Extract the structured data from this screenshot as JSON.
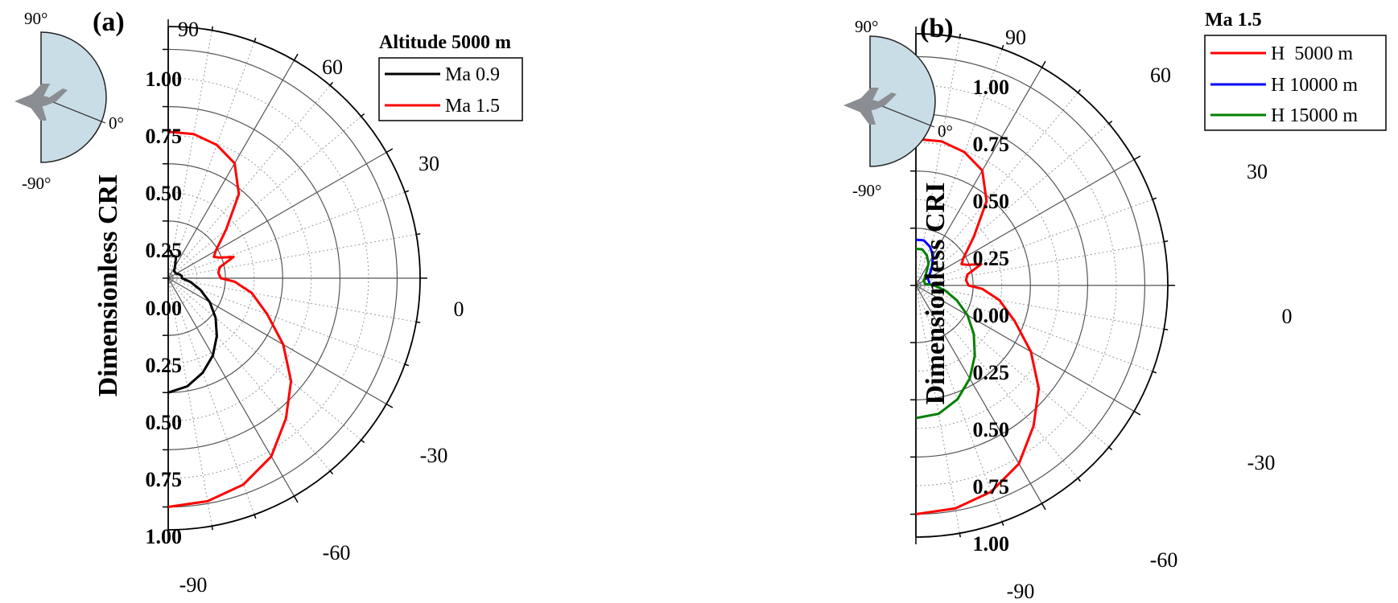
{
  "chart_data": [
    {
      "type": "polar-line",
      "panel_label": "(a)",
      "ylabel": "Dimensionless CRI",
      "r_ticks": [
        "1.00",
        "0.75",
        "0.50",
        "0.25",
        "0.00",
        "0.25",
        "0.50",
        "0.75",
        "1.00"
      ],
      "r_max": 1.1,
      "angle_range": [
        -90,
        90
      ],
      "angle_labels": [
        "90",
        "60",
        "30",
        "0",
        "-30",
        "-60",
        "-90"
      ],
      "legend": {
        "title": "Altitude 5000 m",
        "position": "top-right"
      },
      "inset": {
        "top_label": "90°",
        "mid_label": "0°",
        "bottom_label": "-90°"
      },
      "series": [
        {
          "name": "Ma 0.9",
          "color": "#000000",
          "points": [
            [
              90,
              0.12
            ],
            [
              85,
              0.12
            ],
            [
              80,
              0.1
            ],
            [
              75,
              0.1
            ],
            [
              70,
              0.1
            ],
            [
              60,
              0.06
            ],
            [
              50,
              0.04
            ],
            [
              40,
              0.04
            ],
            [
              30,
              0.04
            ],
            [
              20,
              0.05
            ],
            [
              10,
              0.06
            ],
            [
              0,
              0.06
            ],
            [
              -10,
              0.1
            ],
            [
              -20,
              0.15
            ],
            [
              -30,
              0.21
            ],
            [
              -40,
              0.27
            ],
            [
              -50,
              0.33
            ],
            [
              -60,
              0.39
            ],
            [
              -70,
              0.44
            ],
            [
              -80,
              0.48
            ],
            [
              -90,
              0.5
            ]
          ]
        },
        {
          "name": "Ma 1.5",
          "color": "#ff0000",
          "points": [
            [
              90,
              0.64
            ],
            [
              80,
              0.64
            ],
            [
              70,
              0.62
            ],
            [
              60,
              0.58
            ],
            [
              50,
              0.48
            ],
            [
              40,
              0.33
            ],
            [
              30,
              0.24
            ],
            [
              25,
              0.22
            ],
            [
              22,
              0.24
            ],
            [
              18,
              0.3
            ],
            [
              12,
              0.23
            ],
            [
              6,
              0.22
            ],
            [
              0,
              0.23
            ],
            [
              -3,
              0.29
            ],
            [
              -10,
              0.37
            ],
            [
              -20,
              0.46
            ],
            [
              -30,
              0.58
            ],
            [
              -40,
              0.7
            ],
            [
              -50,
              0.8
            ],
            [
              -60,
              0.9
            ],
            [
              -70,
              0.96
            ],
            [
              -80,
              0.99
            ],
            [
              -90,
              1.0
            ]
          ]
        }
      ]
    },
    {
      "type": "polar-line",
      "panel_label": "(b)",
      "ylabel": "Dimensionless CRI",
      "r_ticks": [
        "1.00",
        "0.75",
        "0.50",
        "0.25",
        "0.00",
        "0.25",
        "0.50",
        "0.75",
        "1.00"
      ],
      "r_max": 1.1,
      "angle_range": [
        -90,
        90
      ],
      "angle_labels": [
        "90",
        "60",
        "30",
        "0",
        "-30",
        "-60",
        "-90"
      ],
      "legend": {
        "title": "Ma 1.5",
        "position": "top-right"
      },
      "inset": {
        "top_label": "90°",
        "mid_label": "0°",
        "bottom_label": "-90°"
      },
      "series": [
        {
          "name": "H  5000 m",
          "color": "#ff0000",
          "points": [
            [
              90,
              0.64
            ],
            [
              80,
              0.64
            ],
            [
              70,
              0.62
            ],
            [
              60,
              0.58
            ],
            [
              50,
              0.48
            ],
            [
              40,
              0.33
            ],
            [
              30,
              0.24
            ],
            [
              25,
              0.22
            ],
            [
              22,
              0.24
            ],
            [
              18,
              0.3
            ],
            [
              12,
              0.23
            ],
            [
              6,
              0.22
            ],
            [
              0,
              0.23
            ],
            [
              -3,
              0.29
            ],
            [
              -10,
              0.37
            ],
            [
              -20,
              0.46
            ],
            [
              -30,
              0.58
            ],
            [
              -40,
              0.7
            ],
            [
              -50,
              0.8
            ],
            [
              -60,
              0.9
            ],
            [
              -70,
              0.96
            ],
            [
              -80,
              0.99
            ],
            [
              -90,
              1.0
            ]
          ]
        },
        {
          "name": "H 10000 m",
          "color": "#0000ff",
          "points": [
            [
              90,
              0.2
            ],
            [
              80,
              0.2
            ],
            [
              70,
              0.18
            ],
            [
              60,
              0.15
            ],
            [
              50,
              0.11
            ],
            [
              40,
              0.08
            ],
            [
              30,
              0.06
            ],
            [
              20,
              0.06
            ],
            [
              10,
              0.06
            ],
            [
              5,
              0.06
            ]
          ]
        },
        {
          "name": "H 15000 m",
          "color": "#008000",
          "points": [
            [
              90,
              0.16
            ],
            [
              80,
              0.16
            ],
            [
              70,
              0.14
            ],
            [
              60,
              0.11
            ],
            [
              50,
              0.07
            ],
            [
              40,
              0.05
            ],
            [
              30,
              0.04
            ],
            [
              20,
              0.04
            ],
            [
              10,
              0.04
            ],
            [
              0,
              0.08
            ],
            [
              -10,
              0.13
            ],
            [
              -20,
              0.19
            ],
            [
              -30,
              0.26
            ],
            [
              -40,
              0.33
            ],
            [
              -50,
              0.4
            ],
            [
              -60,
              0.47
            ],
            [
              -70,
              0.53
            ],
            [
              -80,
              0.57
            ],
            [
              -90,
              0.58
            ]
          ]
        }
      ]
    }
  ]
}
